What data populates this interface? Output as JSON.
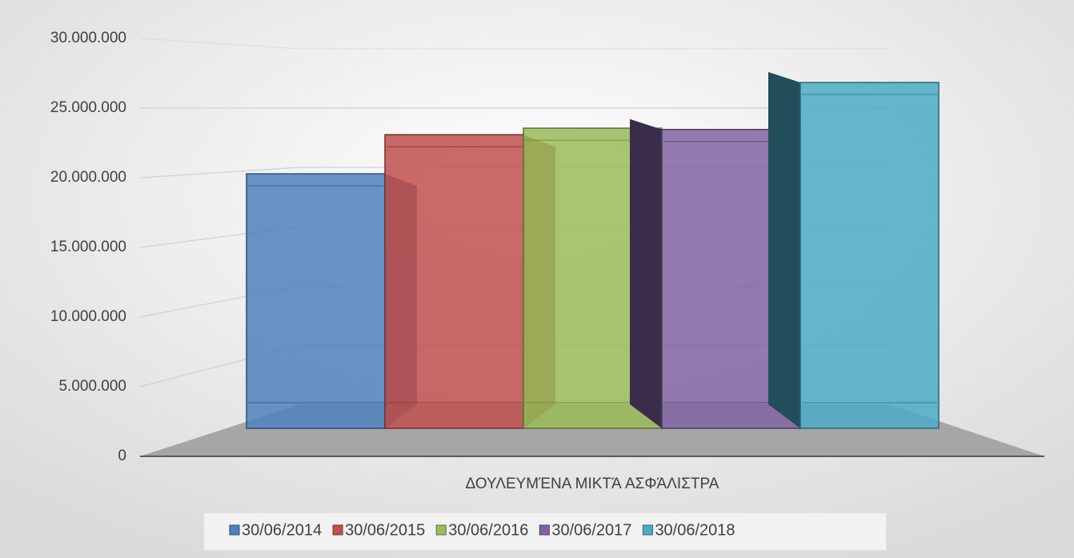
{
  "chart_data": {
    "type": "bar3d",
    "categories": [
      "ΔΟΥΛΕΥΜΈΝΑ ΜΙΚΤΆ ΑΣΦΆΛΙΣΤΡΑ"
    ],
    "series": [
      {
        "name": "30/06/2014",
        "color": "#4f81bd",
        "values": [
          19500000
        ]
      },
      {
        "name": "30/06/2015",
        "color": "#c0504d",
        "values": [
          22500000
        ]
      },
      {
        "name": "30/06/2016",
        "color": "#9bbb59",
        "values": [
          23000000
        ]
      },
      {
        "name": "30/06/2017",
        "color": "#8064a2",
        "values": [
          22900000
        ]
      },
      {
        "name": "30/06/2018",
        "color": "#4bacc6",
        "values": [
          26500000
        ]
      }
    ],
    "ylim": [
      0,
      30000000
    ],
    "yticks": [
      {
        "value": 0,
        "label": "0"
      },
      {
        "value": 5000000,
        "label": "5.000.000"
      },
      {
        "value": 10000000,
        "label": "10.000.000"
      },
      {
        "value": 15000000,
        "label": "15.000.000"
      },
      {
        "value": 20000000,
        "label": "20.000.000"
      },
      {
        "value": 25000000,
        "label": "25.000.000"
      },
      {
        "value": 30000000,
        "label": "30.000.000"
      }
    ],
    "grid": true,
    "legend": "bottom"
  }
}
